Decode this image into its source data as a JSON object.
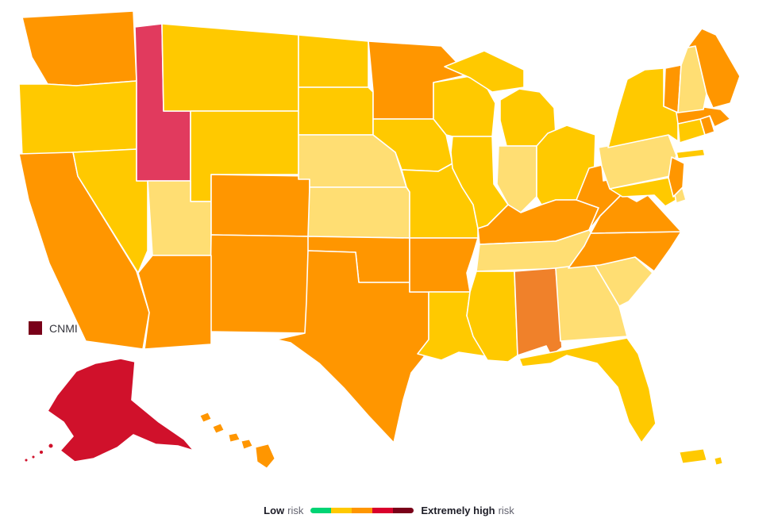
{
  "chart_data": {
    "type": "choropleth",
    "region": "United States risk map",
    "cnmi_label": "CNMI",
    "legend": {
      "low_label_bold": "Low",
      "low_label": "risk",
      "high_label_bold": "Extremely high",
      "high_label": "risk",
      "colors": [
        "#00D474",
        "#FFC900",
        "#FF9600",
        "#D9002C",
        "#790019"
      ]
    },
    "levels": {
      "low": "#00D474",
      "medium_low": "#FFDE73",
      "medium": "#FFC900",
      "high": "#FF9600",
      "high_plus": "#F0812A",
      "very_high": "#E13A5E",
      "critical": "#D0112B",
      "extreme": "#790019"
    },
    "states": [
      {
        "abbr": "WA",
        "name": "Washington",
        "level": "high"
      },
      {
        "abbr": "OR",
        "name": "Oregon",
        "level": "medium"
      },
      {
        "abbr": "CA",
        "name": "California",
        "level": "high"
      },
      {
        "abbr": "NV",
        "name": "Nevada",
        "level": "medium"
      },
      {
        "abbr": "ID",
        "name": "Idaho",
        "level": "very_high"
      },
      {
        "abbr": "MT",
        "name": "Montana",
        "level": "medium"
      },
      {
        "abbr": "WY",
        "name": "Wyoming",
        "level": "medium"
      },
      {
        "abbr": "UT",
        "name": "Utah",
        "level": "medium_low"
      },
      {
        "abbr": "CO",
        "name": "Colorado",
        "level": "high"
      },
      {
        "abbr": "AZ",
        "name": "Arizona",
        "level": "high"
      },
      {
        "abbr": "NM",
        "name": "New Mexico",
        "level": "high"
      },
      {
        "abbr": "ND",
        "name": "North Dakota",
        "level": "medium"
      },
      {
        "abbr": "SD",
        "name": "South Dakota",
        "level": "medium"
      },
      {
        "abbr": "NE",
        "name": "Nebraska",
        "level": "medium_low"
      },
      {
        "abbr": "KS",
        "name": "Kansas",
        "level": "medium_low"
      },
      {
        "abbr": "OK",
        "name": "Oklahoma",
        "level": "high"
      },
      {
        "abbr": "TX",
        "name": "Texas",
        "level": "high"
      },
      {
        "abbr": "MN",
        "name": "Minnesota",
        "level": "high"
      },
      {
        "abbr": "IA",
        "name": "Iowa",
        "level": "medium"
      },
      {
        "abbr": "MO",
        "name": "Missouri",
        "level": "medium"
      },
      {
        "abbr": "AR",
        "name": "Arkansas",
        "level": "high"
      },
      {
        "abbr": "LA",
        "name": "Louisiana",
        "level": "medium"
      },
      {
        "abbr": "WI",
        "name": "Wisconsin",
        "level": "medium"
      },
      {
        "abbr": "MI",
        "name": "Michigan",
        "level": "medium"
      },
      {
        "abbr": "IL",
        "name": "Illinois",
        "level": "medium"
      },
      {
        "abbr": "IN",
        "name": "Indiana",
        "level": "medium_low"
      },
      {
        "abbr": "OH",
        "name": "Ohio",
        "level": "medium"
      },
      {
        "abbr": "KY",
        "name": "Kentucky",
        "level": "high"
      },
      {
        "abbr": "TN",
        "name": "Tennessee",
        "level": "medium_low"
      },
      {
        "abbr": "MS",
        "name": "Mississippi",
        "level": "medium"
      },
      {
        "abbr": "AL",
        "name": "Alabama",
        "level": "high_plus"
      },
      {
        "abbr": "GA",
        "name": "Georgia",
        "level": "medium_low"
      },
      {
        "abbr": "FL",
        "name": "Florida",
        "level": "medium"
      },
      {
        "abbr": "SC",
        "name": "South Carolina",
        "level": "medium_low"
      },
      {
        "abbr": "NC",
        "name": "North Carolina",
        "level": "high"
      },
      {
        "abbr": "VA",
        "name": "Virginia",
        "level": "high"
      },
      {
        "abbr": "WV",
        "name": "West Virginia",
        "level": "high"
      },
      {
        "abbr": "MD",
        "name": "Maryland",
        "level": "medium"
      },
      {
        "abbr": "DE",
        "name": "Delaware",
        "level": "medium_low"
      },
      {
        "abbr": "PA",
        "name": "Pennsylvania",
        "level": "medium_low"
      },
      {
        "abbr": "NJ",
        "name": "New Jersey",
        "level": "high"
      },
      {
        "abbr": "NY",
        "name": "New York",
        "level": "medium"
      },
      {
        "abbr": "CT",
        "name": "Connecticut",
        "level": "medium"
      },
      {
        "abbr": "RI",
        "name": "Rhode Island",
        "level": "high"
      },
      {
        "abbr": "MA",
        "name": "Massachusetts",
        "level": "high"
      },
      {
        "abbr": "VT",
        "name": "Vermont",
        "level": "high"
      },
      {
        "abbr": "NH",
        "name": "New Hampshire",
        "level": "medium_low"
      },
      {
        "abbr": "ME",
        "name": "Maine",
        "level": "high"
      },
      {
        "abbr": "AK",
        "name": "Alaska",
        "level": "critical"
      },
      {
        "abbr": "HI",
        "name": "Hawaii",
        "level": "high"
      },
      {
        "abbr": "PR",
        "name": "Puerto Rico",
        "level": "medium"
      },
      {
        "abbr": "VI",
        "name": "US Virgin Islands",
        "level": "medium"
      },
      {
        "abbr": "CNMI",
        "name": "Northern Mariana Islands",
        "level": "extreme"
      }
    ]
  }
}
